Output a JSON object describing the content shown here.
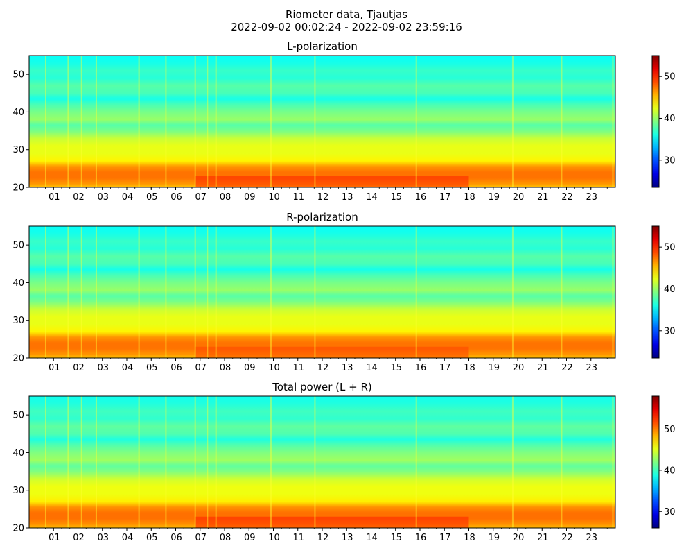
{
  "figure": {
    "title_line1": "Riometer data, Tjautjas",
    "title_line2": "2022-09-02 00:02:24 - 2022-09-02 23:59:16"
  },
  "chart_data": [
    {
      "type": "heatmap",
      "title": "L-polarization",
      "x_axis": {
        "unit": "hour of day",
        "range": [
          0,
          24
        ],
        "tick_labels": [
          "01",
          "02",
          "03",
          "04",
          "05",
          "06",
          "07",
          "08",
          "09",
          "10",
          "11",
          "12",
          "13",
          "14",
          "15",
          "16",
          "17",
          "18",
          "19",
          "20",
          "21",
          "22",
          "23"
        ]
      },
      "y_axis": {
        "range": [
          20,
          55
        ],
        "tick_values": [
          20,
          30,
          40,
          50
        ]
      },
      "colorbar": {
        "colormap": "jet",
        "range": [
          23.5,
          55
        ],
        "tick_values": [
          30,
          40,
          50
        ]
      },
      "row_profile": [
        {
          "y": 20.0,
          "value": 45.0
        },
        {
          "y": 21.0,
          "value": 46.5
        },
        {
          "y": 22.5,
          "value": 47.5
        },
        {
          "y": 24.0,
          "value": 47.5
        },
        {
          "y": 25.5,
          "value": 46.5
        },
        {
          "y": 27.0,
          "value": 43.5
        },
        {
          "y": 29.0,
          "value": 42.5
        },
        {
          "y": 31.0,
          "value": 42.5
        },
        {
          "y": 33.0,
          "value": 41.5
        },
        {
          "y": 35.0,
          "value": 39.0
        },
        {
          "y": 36.5,
          "value": 38.0
        },
        {
          "y": 38.0,
          "value": 40.0
        },
        {
          "y": 40.0,
          "value": 39.0
        },
        {
          "y": 42.0,
          "value": 37.5
        },
        {
          "y": 43.5,
          "value": 36.0
        },
        {
          "y": 45.0,
          "value": 37.5
        },
        {
          "y": 47.0,
          "value": 38.0
        },
        {
          "y": 49.0,
          "value": 36.5
        },
        {
          "y": 51.0,
          "value": 37.0
        },
        {
          "y": 53.0,
          "value": 36.0
        },
        {
          "y": 55.0,
          "value": 35.5
        }
      ],
      "vertical_streaks_hours": [
        0.68,
        1.6,
        2.15,
        2.75,
        4.5,
        5.6,
        6.8,
        7.3,
        7.65,
        9.9,
        11.7,
        15.85,
        19.8,
        21.8,
        23.9
      ],
      "enhanced_region": {
        "hours": [
          6.8,
          18.0
        ],
        "y_range": [
          20,
          23
        ],
        "value": 50
      }
    },
    {
      "type": "heatmap",
      "title": "R-polarization",
      "x_axis": {
        "unit": "hour of day",
        "range": [
          0,
          24
        ],
        "tick_labels": [
          "01",
          "02",
          "03",
          "04",
          "05",
          "06",
          "07",
          "08",
          "09",
          "10",
          "11",
          "12",
          "13",
          "14",
          "15",
          "16",
          "17",
          "18",
          "19",
          "20",
          "21",
          "22",
          "23"
        ]
      },
      "y_axis": {
        "range": [
          20,
          55
        ],
        "tick_values": [
          20,
          30,
          40,
          50
        ]
      },
      "colorbar": {
        "colormap": "jet",
        "range": [
          23.5,
          55
        ],
        "tick_values": [
          30,
          40,
          50
        ]
      },
      "row_profile": [
        {
          "y": 20.0,
          "value": 45.0
        },
        {
          "y": 21.0,
          "value": 46.5
        },
        {
          "y": 22.5,
          "value": 47.5
        },
        {
          "y": 24.0,
          "value": 47.5
        },
        {
          "y": 25.5,
          "value": 46.5
        },
        {
          "y": 27.0,
          "value": 43.5
        },
        {
          "y": 29.0,
          "value": 42.5
        },
        {
          "y": 31.0,
          "value": 42.5
        },
        {
          "y": 33.0,
          "value": 41.5
        },
        {
          "y": 35.0,
          "value": 39.0
        },
        {
          "y": 36.5,
          "value": 38.0
        },
        {
          "y": 38.0,
          "value": 40.0
        },
        {
          "y": 40.0,
          "value": 39.0
        },
        {
          "y": 42.0,
          "value": 37.5
        },
        {
          "y": 43.5,
          "value": 36.0
        },
        {
          "y": 45.0,
          "value": 37.5
        },
        {
          "y": 47.0,
          "value": 38.0
        },
        {
          "y": 49.0,
          "value": 36.5
        },
        {
          "y": 51.0,
          "value": 37.0
        },
        {
          "y": 53.0,
          "value": 36.0
        },
        {
          "y": 55.0,
          "value": 35.5
        }
      ],
      "vertical_streaks_hours": [
        0.68,
        1.6,
        2.15,
        2.75,
        4.5,
        5.6,
        6.8,
        7.3,
        7.65,
        9.9,
        11.7,
        15.85,
        19.8,
        21.8,
        23.9
      ],
      "enhanced_region": {
        "hours": [
          6.8,
          18.0
        ],
        "y_range": [
          20,
          23
        ],
        "value": 49
      }
    },
    {
      "type": "heatmap",
      "title": "Total power (L + R)",
      "x_axis": {
        "unit": "hour of day",
        "range": [
          0,
          24
        ],
        "tick_labels": [
          "01",
          "02",
          "03",
          "04",
          "05",
          "06",
          "07",
          "08",
          "09",
          "10",
          "11",
          "12",
          "13",
          "14",
          "15",
          "16",
          "17",
          "18",
          "19",
          "20",
          "21",
          "22",
          "23"
        ]
      },
      "y_axis": {
        "range": [
          20,
          55
        ],
        "tick_values": [
          20,
          30,
          40,
          50
        ]
      },
      "colorbar": {
        "colormap": "jet",
        "range": [
          26,
          58
        ],
        "tick_values": [
          30,
          40,
          50
        ]
      },
      "row_profile": [
        {
          "y": 20.0,
          "value": 48.0
        },
        {
          "y": 21.0,
          "value": 49.5
        },
        {
          "y": 22.5,
          "value": 50.5
        },
        {
          "y": 24.0,
          "value": 50.5
        },
        {
          "y": 25.5,
          "value": 49.5
        },
        {
          "y": 27.0,
          "value": 46.5
        },
        {
          "y": 29.0,
          "value": 45.5
        },
        {
          "y": 31.0,
          "value": 45.5
        },
        {
          "y": 33.0,
          "value": 44.5
        },
        {
          "y": 35.0,
          "value": 42.0
        },
        {
          "y": 36.5,
          "value": 41.0
        },
        {
          "y": 38.0,
          "value": 43.0
        },
        {
          "y": 40.0,
          "value": 42.0
        },
        {
          "y": 42.0,
          "value": 40.5
        },
        {
          "y": 43.5,
          "value": 39.0
        },
        {
          "y": 45.0,
          "value": 40.5
        },
        {
          "y": 47.0,
          "value": 41.0
        },
        {
          "y": 49.0,
          "value": 39.5
        },
        {
          "y": 51.0,
          "value": 40.0
        },
        {
          "y": 53.0,
          "value": 39.0
        },
        {
          "y": 55.0,
          "value": 38.5
        }
      ],
      "vertical_streaks_hours": [
        0.68,
        1.6,
        2.15,
        2.75,
        4.5,
        5.6,
        6.8,
        7.3,
        7.65,
        9.9,
        11.7,
        15.85,
        19.8,
        21.8,
        23.9
      ],
      "enhanced_region": {
        "hours": [
          6.8,
          18.0
        ],
        "y_range": [
          20,
          23
        ],
        "value": 53
      }
    }
  ]
}
